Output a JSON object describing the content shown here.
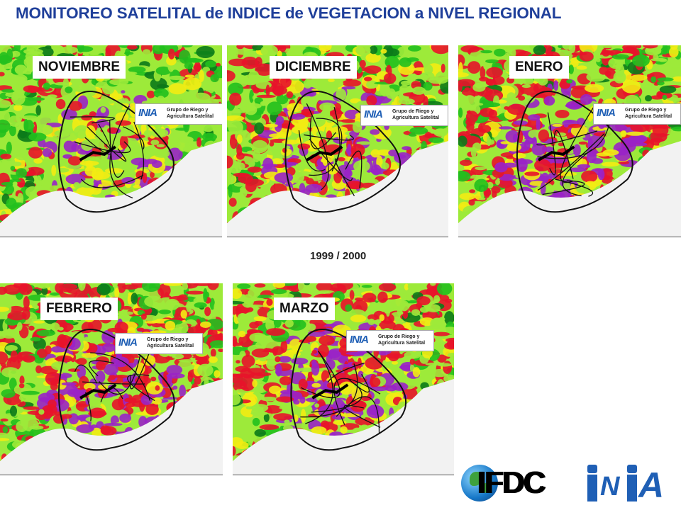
{
  "title": "MONITOREO SATELITAL de INDICE de VEGETACION a NIVEL REGIONAL",
  "season": "1999 / 2000",
  "colors": {
    "title": "#1f3f9a",
    "green_dark": "#0b7a1a",
    "green": "#22c01e",
    "light_green": "#9dea3a",
    "yellow": "#f3ec13",
    "red": "#e8132a",
    "purple": "#9a22c8",
    "water": "#f2f2f2"
  },
  "inset_logo": {
    "mark": "INIA",
    "caption": "Grupo de Riego y\nAgricultura Satelital"
  },
  "panels": [
    {
      "month": "NOVIEMBRE",
      "stress": 0.3,
      "veg": 0.75
    },
    {
      "month": "DICIEMBRE",
      "stress": 0.55,
      "veg": 0.45
    },
    {
      "month": "ENERO",
      "stress": 0.7,
      "veg": 0.45
    },
    {
      "month": "FEBRERO",
      "stress": 0.75,
      "veg": 0.5
    },
    {
      "month": "MARZO",
      "stress": 0.65,
      "veg": 0.35
    }
  ],
  "logos": {
    "ifdc": "IFDC",
    "inia": "INIA"
  }
}
